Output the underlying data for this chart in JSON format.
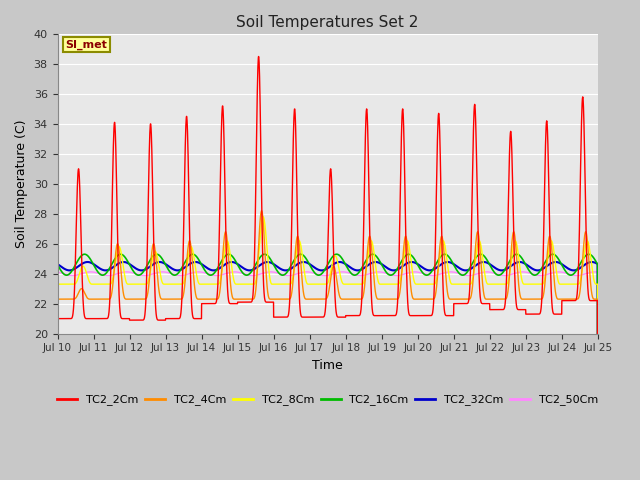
{
  "title": "Soil Temperatures Set 2",
  "xlabel": "Time",
  "ylabel": "Soil Temperature (C)",
  "ylim": [
    20,
    40
  ],
  "yticks": [
    20,
    22,
    24,
    26,
    28,
    30,
    32,
    34,
    36,
    38,
    40
  ],
  "xtick_labels": [
    "Jul 10",
    "Jul 11",
    "Jul 12",
    "Jul 13",
    "Jul 14",
    "Jul 15",
    "Jul 16",
    "Jul 17",
    "Jul 18",
    "Jul 19",
    "Jul 20",
    "Jul 21",
    "Jul 22",
    "Jul 23",
    "Jul 24",
    "Jul 25"
  ],
  "annotation_text": "SI_met",
  "annotation_box_facecolor": "#FFFF99",
  "annotation_box_edgecolor": "#8B8B00",
  "annotation_text_color": "#8B0000",
  "series": {
    "TC2_2Cm": {
      "color": "#FF0000",
      "linewidth": 1.0
    },
    "TC2_4Cm": {
      "color": "#FF8C00",
      "linewidth": 1.0
    },
    "TC2_8Cm": {
      "color": "#FFFF00",
      "linewidth": 1.0
    },
    "TC2_16Cm": {
      "color": "#00BB00",
      "linewidth": 1.2
    },
    "TC2_32Cm": {
      "color": "#0000CC",
      "linewidth": 1.5
    },
    "TC2_50Cm": {
      "color": "#FF88FF",
      "linewidth": 1.0
    }
  },
  "fig_facecolor": "#C8C8C8",
  "plot_facecolor": "#E8E8E8",
  "grid_color": "#FFFFFF",
  "num_days": 15,
  "peaks_2cm": [
    31.0,
    34.1,
    34.0,
    34.5,
    35.2,
    38.5,
    35.0,
    31.0,
    35.0,
    35.0,
    34.7,
    35.3,
    33.5,
    34.2,
    35.8
  ],
  "mins_2cm": [
    21.0,
    21.0,
    20.9,
    21.0,
    22.0,
    22.1,
    21.1,
    21.1,
    21.2,
    21.2,
    21.2,
    22.0,
    21.6,
    21.3,
    22.2
  ],
  "peaks_4cm": [
    23.0,
    26.0,
    26.0,
    26.2,
    26.8,
    28.2,
    26.5,
    24.5,
    26.5,
    26.5,
    26.5,
    26.8,
    26.8,
    26.5,
    26.8
  ],
  "mins_4cm": [
    22.3,
    22.3,
    22.3,
    22.3,
    22.3,
    22.3,
    22.3,
    22.3,
    22.3,
    22.3,
    22.3,
    22.3,
    22.3,
    22.3,
    22.3
  ],
  "peaks_8cm": [
    24.5,
    25.8,
    25.5,
    25.8,
    26.2,
    27.8,
    26.2,
    25.2,
    26.2,
    26.2,
    26.2,
    26.2,
    26.2,
    26.2,
    26.2
  ],
  "mins_8cm": [
    23.3,
    23.3,
    23.3,
    23.3,
    23.3,
    23.3,
    23.3,
    23.3,
    23.3,
    23.3,
    23.3,
    23.3,
    23.3,
    23.3,
    23.3
  ],
  "peak_hour_2cm": 14,
  "peak_hour_4cm": 16,
  "peak_hour_8cm": 17,
  "sharpness_2cm": 6.0,
  "sharpness_4cm": 3.5,
  "sharpness_8cm": 2.5
}
